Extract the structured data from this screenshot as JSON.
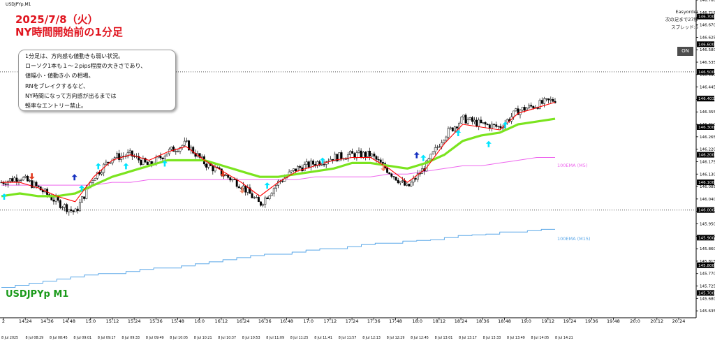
{
  "window": {
    "symbol_tab": "USDJPYp,M1"
  },
  "title": {
    "line1": "2025/7/8（火）",
    "line2": "NY時間開始前の1分足"
  },
  "note": {
    "lines": [
      "1分足は、方向感も値動きも弱い状況。",
      "ローソク1本も１～２pips程度の大きさであり、",
      "値幅小・値動き小 の相場。",
      "RNをブレイクするなど、",
      "NY時間になって方向感が出るまでは",
      "軽率なエントリー禁止。"
    ]
  },
  "symbol_label": "USDJPYp M1",
  "panel": {
    "line1": "Easyorder",
    "line2": "次の足まで27秒",
    "line3": "スプレッド:5",
    "on_button": "ON"
  },
  "ema_labels": {
    "ema100_m5": "100EMA (M5)",
    "ema100_m15": "100EMA (M15)"
  },
  "colors": {
    "background": "#ffffff",
    "candle": "#000000",
    "ema_fast": "#ff0000",
    "ema_mid": "#7be41f",
    "ema100_m5": "#ee66ee",
    "ema100_m15": "#5aa7e8",
    "arrow_up": "#00e5ff",
    "arrow_strong_up": "#1530c0",
    "arrow_down": "#e03a20",
    "arrow_weak_down": "#f28a6a",
    "title": "#e0141e",
    "symbol_label": "#1a9a1a"
  },
  "chart_data": {
    "type": "candlestick",
    "timeframe": "M1",
    "ylim": [
      145.61,
      146.76
    ],
    "y_ticks": [
      146.76,
      146.715,
      146.67,
      146.625,
      146.58,
      146.535,
      146.49,
      146.445,
      146.4,
      146.355,
      146.31,
      146.265,
      146.22,
      146.175,
      146.13,
      146.085,
      146.04,
      145.995,
      145.95,
      145.905,
      145.86,
      145.815,
      145.77,
      145.725,
      145.68,
      145.635
    ],
    "y_tick_labels": [
      "146.760",
      "146.715",
      "146.670",
      "146.625",
      "146.580",
      "146.535",
      "146.490",
      "146.445",
      "146.400",
      "146.355",
      "146.310",
      "146.265",
      "146.220",
      "146.175",
      "146.130",
      "146.085",
      "146.040",
      "145.995",
      "145.950",
      "145.905",
      "145.860",
      "145.815",
      "145.770",
      "145.725",
      "145.680",
      "145.635"
    ],
    "y_highlights": [
      {
        "label": "146.700",
        "value": 146.7
      },
      {
        "label": "146.600",
        "value": 146.6
      },
      {
        "label": "146.500",
        "value": 146.5
      },
      {
        "label": "146.403",
        "value": 146.403
      },
      {
        "label": "146.300",
        "value": 146.3
      },
      {
        "label": "146.200",
        "value": 146.2
      },
      {
        "label": "146.100",
        "value": 146.1
      },
      {
        "label": "146.000",
        "value": 146.0
      },
      {
        "label": "145.900",
        "value": 145.9
      },
      {
        "label": "145.800",
        "value": 145.8
      },
      {
        "label": "145.700",
        "value": 145.7
      }
    ],
    "round_number_lines": [
      146.5,
      146.0
    ],
    "x_ticks_top": [
      "2",
      "14:24",
      "14:36",
      "14:48",
      "15:0",
      "15:12",
      "15:24",
      "15:36",
      "15:48",
      "16:0",
      "16:12",
      "16:24",
      "16:36",
      "16:48",
      "17:0",
      "17:12",
      "17:24",
      "17:36",
      "17:48",
      "18:0",
      "18:12",
      "18:24",
      "18:36",
      "18:48",
      "19:0",
      "19:12",
      "19:24",
      "19:36",
      "19:48",
      "20:0",
      "20:12",
      "20:24"
    ],
    "x_ticks_bottom": [
      "8 Jul 2025",
      "8 Jul 08:29",
      "8 Jul 08:45",
      "8 Jul 09:01",
      "8 Jul 09:17",
      "8 Jul 09:33",
      "8 Jul 09:49",
      "8 Jul 10:05",
      "8 Jul 10:21",
      "8 Jul 10:37",
      "8 Jul 10:53",
      "8 Jul 11:09",
      "8 Jul 11:25",
      "8 Jul 11:41",
      "8 Jul 11:57",
      "8 Jul 12:13",
      "8 Jul 12:29",
      "8 Jul 12:45",
      "8 Jul 13:01",
      "8 Jul 13:17",
      "8 Jul 13:33",
      "8 Jul 13:49",
      "8 Jul 14:05",
      "8 Jul 14:21"
    ],
    "close_anchors": [
      146.1,
      146.12,
      146.08,
      146.03,
      145.99,
      146.12,
      146.19,
      146.2,
      146.16,
      146.21,
      146.24,
      146.17,
      146.13,
      146.09,
      146.02,
      146.1,
      146.15,
      146.17,
      146.19,
      146.2,
      146.2,
      146.14,
      146.08,
      146.16,
      146.27,
      146.33,
      146.31,
      146.3,
      146.36,
      146.38,
      146.4
    ],
    "ema_fast": [
      146.1,
      146.1,
      146.08,
      146.05,
      146.03,
      146.12,
      146.18,
      146.2,
      146.18,
      146.21,
      146.23,
      146.18,
      146.14,
      146.1,
      146.05,
      146.1,
      146.14,
      146.16,
      146.18,
      146.19,
      146.19,
      146.15,
      146.1,
      146.15,
      146.24,
      146.31,
      146.3,
      146.29,
      146.35,
      146.37,
      146.39
    ],
    "ema_mid": [
      146.05,
      146.06,
      146.05,
      146.05,
      146.06,
      146.09,
      146.12,
      146.14,
      146.16,
      146.18,
      146.18,
      146.18,
      146.16,
      146.14,
      146.12,
      146.12,
      146.13,
      146.14,
      146.15,
      146.17,
      146.17,
      146.16,
      146.15,
      146.17,
      146.2,
      146.25,
      146.27,
      146.28,
      146.31,
      146.32,
      146.33
    ],
    "ema100_m5": [
      146.09,
      146.09,
      146.09,
      146.09,
      146.09,
      146.09,
      146.1,
      146.1,
      146.11,
      146.11,
      146.11,
      146.11,
      146.11,
      146.11,
      146.11,
      146.11,
      146.11,
      146.12,
      146.12,
      146.12,
      146.12,
      146.13,
      146.13,
      146.14,
      146.15,
      146.16,
      146.16,
      146.17,
      146.18,
      146.19,
      146.19
    ],
    "ema100_m15": [
      145.72,
      145.73,
      145.74,
      145.75,
      145.76,
      145.77,
      145.77,
      145.78,
      145.79,
      145.79,
      145.8,
      145.81,
      145.82,
      145.83,
      145.84,
      145.84,
      145.85,
      145.86,
      145.86,
      145.87,
      145.88,
      145.88,
      145.89,
      145.89,
      145.9,
      145.91,
      145.91,
      145.92,
      145.92,
      145.93,
      145.93
    ],
    "signals": [
      {
        "type": "up",
        "at": 0.005,
        "price": 146.06
      },
      {
        "type": "down",
        "at": 0.055,
        "price": 146.11
      },
      {
        "type": "strong_up",
        "at": 0.132,
        "price": 146.13
      },
      {
        "type": "up",
        "at": 0.145,
        "price": 146.09
      },
      {
        "type": "up",
        "at": 0.175,
        "price": 146.17
      },
      {
        "type": "up",
        "at": 0.225,
        "price": 146.17
      },
      {
        "type": "up",
        "at": 0.295,
        "price": 146.18
      },
      {
        "type": "down",
        "at": 0.4,
        "price": 146.12
      },
      {
        "type": "weak_down",
        "at": 0.435,
        "price": 146.06
      },
      {
        "type": "up",
        "at": 0.48,
        "price": 146.1
      },
      {
        "type": "up",
        "at": 0.58,
        "price": 146.19
      },
      {
        "type": "weak_down",
        "at": 0.69,
        "price": 146.14
      },
      {
        "type": "strong_up",
        "at": 0.75,
        "price": 146.21
      },
      {
        "type": "up",
        "at": 0.762,
        "price": 146.2
      },
      {
        "type": "up",
        "at": 0.825,
        "price": 146.29
      },
      {
        "type": "up",
        "at": 0.88,
        "price": 146.25
      },
      {
        "type": "up",
        "at": 0.91,
        "price": 146.32
      }
    ]
  }
}
